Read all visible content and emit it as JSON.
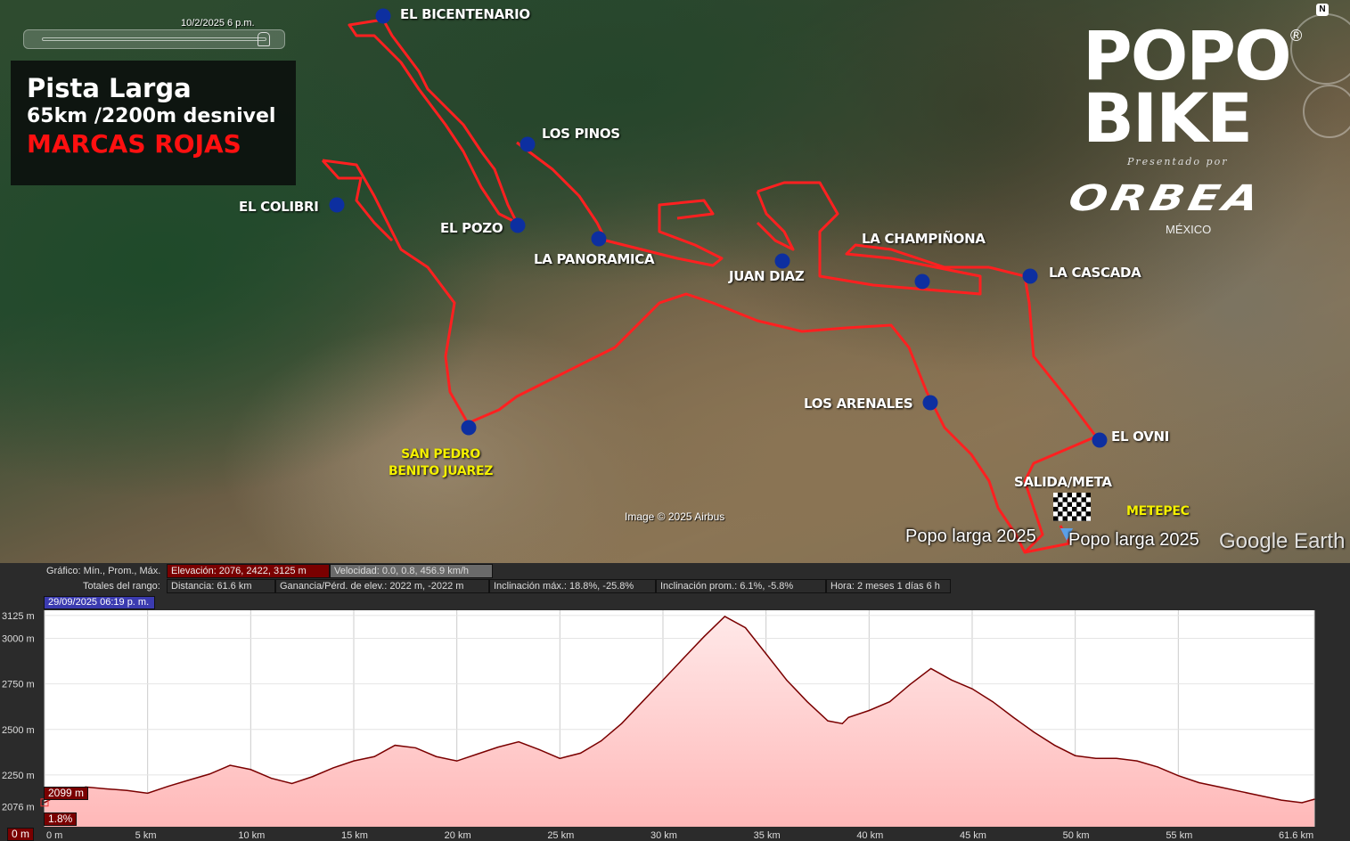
{
  "map": {
    "slider_date": "10/2/2025   6 p.m.",
    "title_box": {
      "line1": "Pista Larga",
      "line2": "65km /2200m desnivel",
      "line3": "MARCAS ROJAS"
    },
    "logo": {
      "line1": "POPO",
      "line2": "BIKE",
      "registered": "®",
      "presented_by": "Presentado por",
      "sponsor": "ORBEA",
      "sponsor_country": "MÉXICO"
    },
    "north_label": "N",
    "waypoints": [
      "EL BICENTENARIO",
      "LOS PINOS",
      "EL COLIBRI",
      "EL POZO",
      "LA PANORAMICA",
      "JUAN DIAZ",
      "LA CHAMPIÑONA",
      "LA CASCADA",
      "LOS ARENALES",
      "EL OVNI"
    ],
    "towns": {
      "san_pedro": [
        "SAN PEDRO",
        "BENITO JUAREZ"
      ],
      "metepec": "METEPEC"
    },
    "start_finish": "SALIDA/META",
    "placemark_labels": [
      "Popo larga 2025",
      "Popo larga 2025"
    ],
    "image_credit": "Image © 2025 Airbus",
    "watermark": "Google Earth",
    "route_color": "#ff2020",
    "waypoint_color": "#0d2fa0"
  },
  "profile": {
    "graph_label": "Gráfico: Mín., Prom., Máx.",
    "elevation": "Elevación: 2076, 2422, 3125 m",
    "speed": "Velocidad: 0.0, 0.8, 456.9 km/h",
    "range_label": "Totales del rango:",
    "distance": "Distancia: 61.6 km",
    "gain_loss": "Ganancia/Pérd. de elev.: 2022 m, -2022 m",
    "max_slope": "Inclinación máx.: 18.8%, -25.8%",
    "avg_slope": "Inclinación prom.: 6.1%, -5.8%",
    "time": "Hora: 2 meses 1 días 6 h",
    "date": "29/09/2025 06:19 p. m.",
    "cursor_elevation": "2099 m",
    "cursor_slope": "1.8%",
    "cursor_distance": "0 m"
  },
  "chart_data": {
    "type": "area",
    "xlabel": "",
    "ylabel": "",
    "x_unit": "km",
    "y_unit": "m",
    "xlim": [
      0,
      61.6
    ],
    "ylim": [
      1966,
      3154
    ],
    "y_ticks": [
      "3125 m",
      "3000 m",
      "2750 m",
      "2500 m",
      "2250 m",
      "2076 m"
    ],
    "y_tick_values": [
      3125,
      3000,
      2750,
      2500,
      2250,
      2076
    ],
    "x_ticks": [
      "0 m",
      "5 km",
      "10 km",
      "15 km",
      "20 km",
      "25 km",
      "30 km",
      "35 km",
      "40 km",
      "45 km",
      "50 km",
      "55 km",
      "61.6 km"
    ],
    "x_tick_values": [
      0,
      5,
      10,
      15,
      20,
      25,
      30,
      35,
      40,
      45,
      50,
      55,
      61.6
    ],
    "grid": true,
    "line_color": "#7a0000",
    "fill_color": "#ffb8b8",
    "x": [
      0,
      1,
      2,
      3,
      4,
      5,
      6,
      7,
      8,
      9,
      10,
      11,
      12,
      13,
      14,
      15,
      16,
      17,
      18,
      19,
      20,
      21,
      22,
      23,
      24,
      25,
      26,
      27,
      28,
      29,
      30,
      31,
      32,
      33,
      34,
      35,
      36,
      37,
      38,
      38.7,
      39,
      40,
      41,
      42,
      43,
      44,
      45,
      46,
      47,
      48,
      49,
      50,
      51,
      52,
      53,
      54,
      55,
      56,
      57,
      58,
      59,
      60,
      61,
      61.6
    ],
    "y": [
      2099,
      2160,
      2184,
      2174,
      2165,
      2150,
      2188,
      2222,
      2255,
      2303,
      2280,
      2232,
      2203,
      2241,
      2289,
      2327,
      2351,
      2413,
      2399,
      2351,
      2327,
      2365,
      2403,
      2432,
      2389,
      2341,
      2370,
      2437,
      2533,
      2652,
      2771,
      2891,
      3010,
      3120,
      3058,
      2915,
      2771,
      2652,
      2547,
      2532,
      2566,
      2604,
      2652,
      2748,
      2834,
      2771,
      2723,
      2652,
      2566,
      2485,
      2413,
      2356,
      2341,
      2341,
      2327,
      2294,
      2246,
      2208,
      2184,
      2160,
      2136,
      2112,
      2098,
      2117
    ]
  }
}
